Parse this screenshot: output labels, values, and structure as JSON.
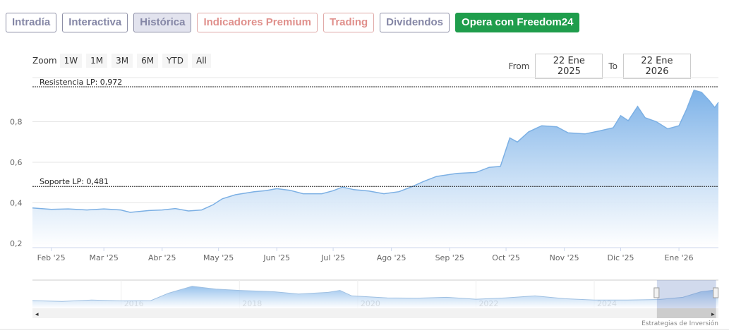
{
  "tabs": [
    {
      "label": "Intradía",
      "style": "normal"
    },
    {
      "label": "Interactiva",
      "style": "normal"
    },
    {
      "label": "Histórica",
      "style": "active"
    },
    {
      "label": "Indicadores Premium",
      "style": "red"
    },
    {
      "label": "Trading",
      "style": "red"
    },
    {
      "label": "Dividendos",
      "style": "normal"
    },
    {
      "label": "Opera con Freedom24",
      "style": "green"
    }
  ],
  "zoom": {
    "label": "Zoom",
    "buttons": [
      "1W",
      "1M",
      "3M",
      "6M",
      "YTD",
      "All"
    ]
  },
  "range": {
    "from_label": "From",
    "from": "22 Ene 2025",
    "to_label": "To",
    "to": "22 Ene 2026"
  },
  "credits": "Estrategias de Inversión",
  "chart_data": {
    "type": "area",
    "colors": {
      "line": "#7cb0e4",
      "fill_top": "#7db2e8",
      "fill_bottom": "#ffffff"
    },
    "ylim": [
      0.2,
      1.0
    ],
    "yticks": [
      {
        "v": 0.2,
        "label": "0,2"
      },
      {
        "v": 0.4,
        "label": "0,4"
      },
      {
        "v": 0.6,
        "label": "0,6"
      },
      {
        "v": 0.8,
        "label": "0,8"
      }
    ],
    "xlim": [
      "2025-01-22",
      "2026-01-22"
    ],
    "xticks": [
      {
        "d": "2025-02-01",
        "label": "Feb '25"
      },
      {
        "d": "2025-03-01",
        "label": "Mar '25"
      },
      {
        "d": "2025-04-01",
        "label": "Abr '25"
      },
      {
        "d": "2025-05-01",
        "label": "May '25"
      },
      {
        "d": "2025-06-01",
        "label": "Jun '25"
      },
      {
        "d": "2025-07-01",
        "label": "Jul '25"
      },
      {
        "d": "2025-08-01",
        "label": "Ago '25"
      },
      {
        "d": "2025-09-01",
        "label": "Sep '25"
      },
      {
        "d": "2025-10-01",
        "label": "Oct '25"
      },
      {
        "d": "2025-11-01",
        "label": "Nov '25"
      },
      {
        "d": "2025-12-01",
        "label": "Dic '25"
      },
      {
        "d": "2026-01-01",
        "label": "Ene '26"
      }
    ],
    "plotlines": [
      {
        "label": "Resistencia LP: 0,972",
        "value": 0.972
      },
      {
        "label": "Soporte LP: 0,481",
        "value": 0.481
      }
    ],
    "series": [
      [
        "2025-01-22",
        0.375
      ],
      [
        "2025-02-01",
        0.368
      ],
      [
        "2025-02-10",
        0.37
      ],
      [
        "2025-02-20",
        0.365
      ],
      [
        "2025-03-01",
        0.37
      ],
      [
        "2025-03-10",
        0.365
      ],
      [
        "2025-03-15",
        0.353
      ],
      [
        "2025-03-25",
        0.362
      ],
      [
        "2025-04-01",
        0.365
      ],
      [
        "2025-04-08",
        0.372
      ],
      [
        "2025-04-15",
        0.36
      ],
      [
        "2025-04-22",
        0.365
      ],
      [
        "2025-04-28",
        0.39
      ],
      [
        "2025-05-03",
        0.42
      ],
      [
        "2025-05-10",
        0.44
      ],
      [
        "2025-05-20",
        0.455
      ],
      [
        "2025-05-26",
        0.46
      ],
      [
        "2025-06-01",
        0.47
      ],
      [
        "2025-06-08",
        0.462
      ],
      [
        "2025-06-15",
        0.445
      ],
      [
        "2025-06-25",
        0.445
      ],
      [
        "2025-07-01",
        0.46
      ],
      [
        "2025-07-06",
        0.478
      ],
      [
        "2025-07-12",
        0.465
      ],
      [
        "2025-07-20",
        0.458
      ],
      [
        "2025-07-28",
        0.445
      ],
      [
        "2025-08-05",
        0.455
      ],
      [
        "2025-08-12",
        0.48
      ],
      [
        "2025-08-18",
        0.505
      ],
      [
        "2025-08-25",
        0.53
      ],
      [
        "2025-09-05",
        0.545
      ],
      [
        "2025-09-15",
        0.55
      ],
      [
        "2025-09-22",
        0.575
      ],
      [
        "2025-09-28",
        0.58
      ],
      [
        "2025-10-03",
        0.72
      ],
      [
        "2025-10-07",
        0.7
      ],
      [
        "2025-10-13",
        0.75
      ],
      [
        "2025-10-20",
        0.78
      ],
      [
        "2025-10-28",
        0.775
      ],
      [
        "2025-11-03",
        0.745
      ],
      [
        "2025-11-12",
        0.74
      ],
      [
        "2025-11-20",
        0.755
      ],
      [
        "2025-11-27",
        0.77
      ],
      [
        "2025-12-01",
        0.83
      ],
      [
        "2025-12-05",
        0.805
      ],
      [
        "2025-12-10",
        0.875
      ],
      [
        "2025-12-14",
        0.82
      ],
      [
        "2025-12-20",
        0.8
      ],
      [
        "2025-12-26",
        0.765
      ],
      [
        "2026-01-01",
        0.78
      ],
      [
        "2026-01-05",
        0.86
      ],
      [
        "2026-01-09",
        0.955
      ],
      [
        "2026-01-13",
        0.945
      ],
      [
        "2026-01-17",
        0.905
      ],
      [
        "2026-01-20",
        0.87
      ],
      [
        "2026-01-22",
        0.895
      ]
    ],
    "navigator": {
      "xticks": [
        "2016",
        "2018",
        "2020",
        "2022",
        "2024"
      ],
      "xlim": [
        2014.5,
        2026.1
      ],
      "series": [
        [
          2014.5,
          0.28
        ],
        [
          2015,
          0.25
        ],
        [
          2015.5,
          0.3
        ],
        [
          2016,
          0.27
        ],
        [
          2016.5,
          0.28
        ],
        [
          2016.8,
          0.55
        ],
        [
          2017.2,
          0.8
        ],
        [
          2017.6,
          0.7
        ],
        [
          2018,
          0.65
        ],
        [
          2018.6,
          0.6
        ],
        [
          2019,
          0.52
        ],
        [
          2019.5,
          0.58
        ],
        [
          2019.7,
          0.65
        ],
        [
          2019.9,
          0.45
        ],
        [
          2020.5,
          0.38
        ],
        [
          2021,
          0.37
        ],
        [
          2021.5,
          0.4
        ],
        [
          2022,
          0.33
        ],
        [
          2022.5,
          0.38
        ],
        [
          2023,
          0.45
        ],
        [
          2023.5,
          0.35
        ],
        [
          2024,
          0.3
        ],
        [
          2024.5,
          0.3
        ],
        [
          2025.1,
          0.32
        ],
        [
          2025.5,
          0.4
        ],
        [
          2025.8,
          0.6
        ],
        [
          2026.1,
          0.68
        ]
      ],
      "selected": [
        2025.06,
        2026.06
      ]
    }
  }
}
